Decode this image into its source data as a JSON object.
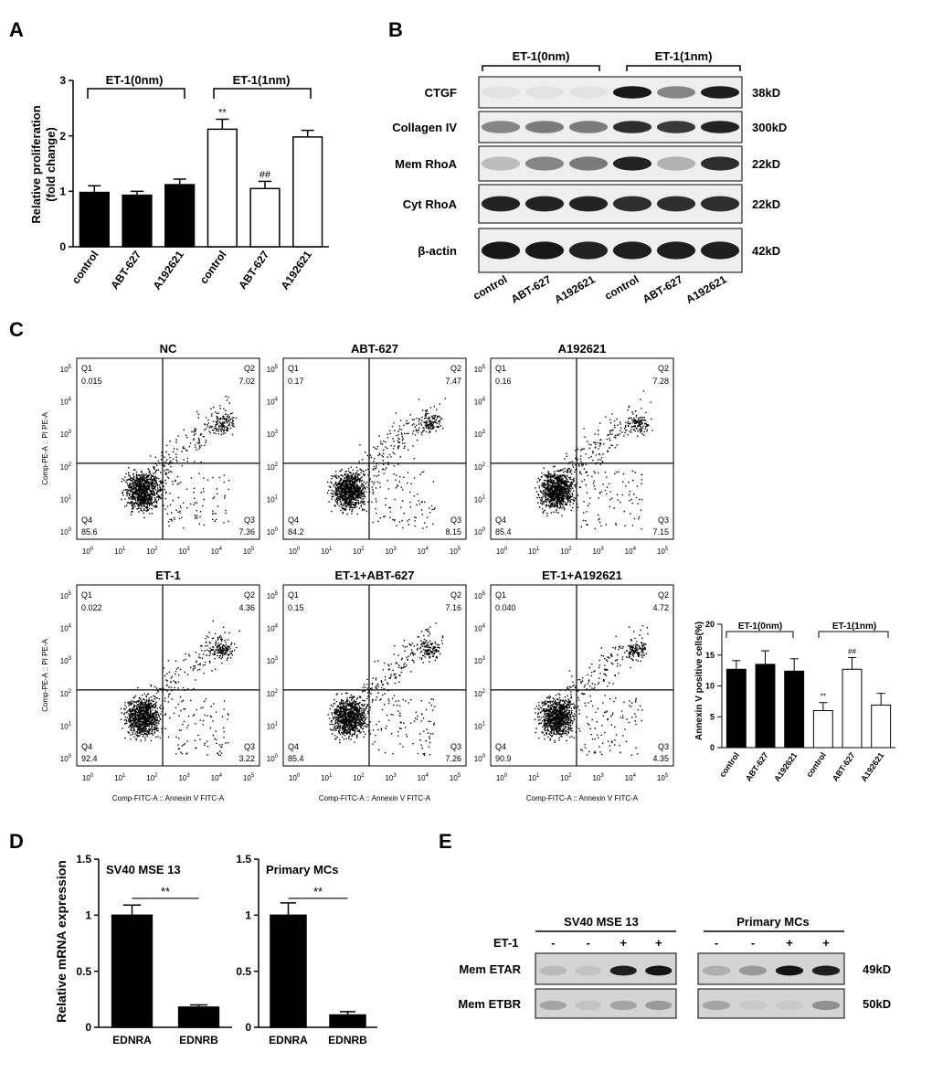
{
  "panels": {
    "A": "A",
    "B": "B",
    "C": "C",
    "D": "D",
    "E": "E"
  },
  "panel_a": {
    "group1": "ET-1(0nm)",
    "group2": "ET-1(1nm)",
    "ylabel_line1": "Relative proliferation",
    "ylabel_line2": "(fold change)"
  },
  "panel_b": {
    "group1": "ET-1(0nm)",
    "group2": "ET-1(1nm)",
    "rows": [
      {
        "label": "CTGF",
        "size": "38kD",
        "bands": [
          0.02,
          0.02,
          0.02,
          0.95,
          0.45,
          0.92
        ]
      },
      {
        "label": "Collagen IV",
        "size": "300kD",
        "bands": [
          0.45,
          0.5,
          0.5,
          0.85,
          0.8,
          0.9
        ]
      },
      {
        "label": "Mem RhoA",
        "size": "22kD",
        "bands": [
          0.2,
          0.45,
          0.5,
          0.9,
          0.25,
          0.85
        ]
      },
      {
        "label": "Cyt RhoA",
        "size": "22kD",
        "bands": [
          0.9,
          0.9,
          0.9,
          0.85,
          0.85,
          0.85
        ]
      },
      {
        "label": "β-actin",
        "size": "42kD",
        "bands": [
          0.95,
          0.95,
          0.9,
          0.92,
          0.92,
          0.92
        ]
      }
    ],
    "lanes": [
      "control",
      "ABT-627",
      "A192621",
      "control",
      "ABT-627",
      "A192621"
    ]
  },
  "panel_c": {
    "plots": [
      {
        "title": "NC",
        "q1": "0.015",
        "q2": "7.02",
        "q3": "7.36",
        "q4": "85.6",
        "ylabel": "Comp-PE-A :: PI PE-A",
        "xlabel": ""
      },
      {
        "title": "ABT-627",
        "q1": "0.17",
        "q2": "7.47",
        "q3": "8.15",
        "q4": "84.2",
        "ylabel": "",
        "xlabel": ""
      },
      {
        "title": "A192621",
        "q1": "0.16",
        "q2": "7.28",
        "q3": "7.15",
        "q4": "85.4",
        "ylabel": "",
        "xlabel": ""
      },
      {
        "title": "ET-1",
        "q1": "0.022",
        "q2": "4.36",
        "q3": "3.22",
        "q4": "92.4",
        "ylabel": "Comp-PE-A :: PI PE-A",
        "xlabel": "Comp-FITC-A :: Annexin V FITC-A"
      },
      {
        "title": "ET-1+ABT-627",
        "q1": "0.15",
        "q2": "7.16",
        "q3": "7.26",
        "q4": "85.4",
        "ylabel": "",
        "xlabel": "Comp-FITC-A :: Annexin V FITC-A"
      },
      {
        "title": "ET-1+A192621",
        "q1": "0.040",
        "q2": "4.72",
        "q3": "4.35",
        "q4": "90.9",
        "ylabel": "",
        "xlabel": "Comp-FITC-A :: Annexin V FITC-A"
      }
    ],
    "quadrant_names": [
      "Q1",
      "Q2",
      "Q3",
      "Q4"
    ],
    "bar_group1": "ET-1(0nm)",
    "bar_group2": "ET-1(1nm)",
    "bar_ylabel": "Annexin V positive cells(%)"
  },
  "panel_d": {
    "ylabel": "Relative mRNA expression"
  },
  "panel_e": {
    "group1": "SV40 MSE 13",
    "group2": "Primary MCs",
    "et1_label": "ET-1",
    "signs": [
      "-",
      "-",
      "+",
      "+",
      "-",
      "-",
      "+",
      "+"
    ],
    "rows": [
      {
        "label": "Mem ETAR",
        "size": "49kD",
        "bands": [
          0.1,
          0.05,
          0.85,
          0.9,
          0.15,
          0.25,
          0.9,
          0.85
        ]
      },
      {
        "label": "Mem ETBR",
        "size": "50kD",
        "bands": [
          0.2,
          0.05,
          0.2,
          0.25,
          0.2,
          0.02,
          0.02,
          0.3
        ]
      }
    ]
  },
  "chart_data": [
    {
      "type": "bar",
      "panel": "A",
      "categories": [
        "control",
        "ABT-627",
        "A192621",
        "control",
        "ABT-627",
        "A192621"
      ],
      "values": [
        0.98,
        0.93,
        1.12,
        2.12,
        1.05,
        1.98
      ],
      "errors": [
        0.12,
        0.07,
        0.1,
        0.18,
        0.13,
        0.12
      ],
      "fills": [
        "#000000",
        "#000000",
        "#000000",
        "#ffffff",
        "#ffffff",
        "#ffffff"
      ],
      "annotations": [
        "",
        "",
        "",
        "**",
        "##",
        ""
      ],
      "ylim": [
        0,
        3
      ],
      "yticks": [
        0,
        1,
        2,
        3
      ],
      "ylabel": "Relative proliferation (fold change)"
    },
    {
      "type": "bar",
      "panel": "C",
      "categories": [
        "control",
        "ABT-627",
        "A192621",
        "control",
        "ABT-627",
        "A192621"
      ],
      "values": [
        12.7,
        13.5,
        12.4,
        6.0,
        12.7,
        6.9
      ],
      "errors": [
        1.4,
        2.2,
        2.0,
        1.3,
        1.9,
        1.9
      ],
      "fills": [
        "#000000",
        "#000000",
        "#000000",
        "#ffffff",
        "#ffffff",
        "#ffffff"
      ],
      "annotations": [
        "",
        "",
        "",
        "**",
        "##",
        ""
      ],
      "ylim": [
        0,
        20
      ],
      "yticks": [
        0,
        5,
        10,
        15,
        20
      ],
      "ylabel": "Annexin V positive cells(%)"
    },
    {
      "type": "bar",
      "panel": "D",
      "title": "SV40 MSE 13",
      "categories": [
        "EDNRA",
        "EDNRB"
      ],
      "values": [
        1.0,
        0.18
      ],
      "errors": [
        0.09,
        0.02
      ],
      "significance": "**",
      "ylim": [
        0,
        1.5
      ],
      "yticks": [
        0.0,
        0.5,
        1.0,
        1.5
      ],
      "ylabel": "Relative mRNA expression"
    },
    {
      "type": "bar",
      "panel": "D",
      "title": "Primary MCs",
      "categories": [
        "EDNRA",
        "EDNRB"
      ],
      "values": [
        1.0,
        0.11
      ],
      "errors": [
        0.11,
        0.03
      ],
      "significance": "**",
      "ylim": [
        0,
        1.5
      ],
      "yticks": [
        0.0,
        0.5,
        1.0,
        1.5
      ],
      "ylabel": ""
    }
  ]
}
